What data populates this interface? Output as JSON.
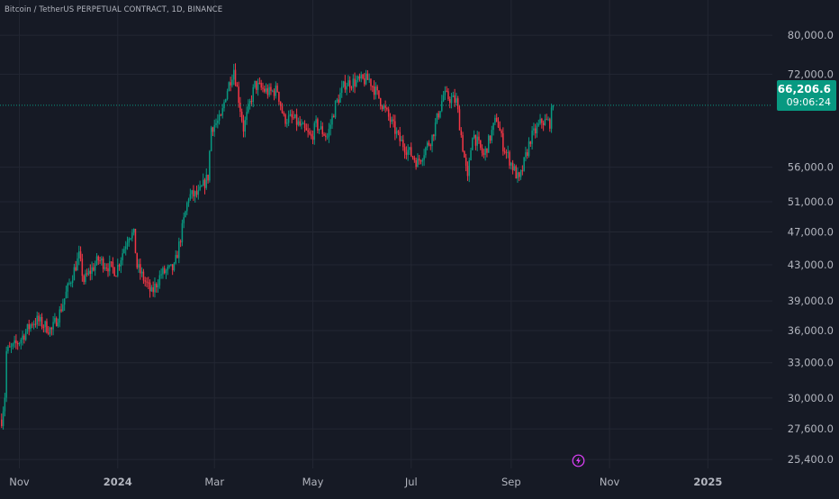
{
  "header": {
    "title": "Bitcoin / TetherUS PERPETUAL CONTRACT, 1D, BINANCE"
  },
  "last_price": {
    "value": "66,206.6",
    "countdown": "09:06:24",
    "color": "#089981"
  },
  "colors": {
    "background": "#161a25",
    "up": "#089981",
    "down": "#f23645",
    "grid": "#232733",
    "text": "#d1d4dc"
  },
  "icons": {
    "bottom": "lightning-icon"
  },
  "chart_data": {
    "type": "candlestick",
    "title": "Bitcoin / TetherUS PERPETUAL CONTRACT, 1D, BINANCE",
    "y_scale": "log",
    "ylim": [
      24800,
      88000
    ],
    "y_ticks": [
      "80,000.0",
      "72,000.0",
      "56,000.0",
      "51,000.0",
      "47,000.0",
      "43,000.0",
      "39,000.0",
      "36,000.0",
      "33,000.0",
      "30,000.0",
      "27,600.0",
      "25,400.0"
    ],
    "x_ticks": [
      "Nov",
      "2024",
      "Mar",
      "May",
      "Jul",
      "Sep",
      "Nov",
      "2025"
    ],
    "x_range": [
      "2023-10-20",
      "2025-02-10"
    ],
    "last_close": 66206.6,
    "grid": true,
    "closes": [
      [
        "2023-10-21",
        28300
      ],
      [
        "2023-10-23",
        30200
      ],
      [
        "2023-10-24",
        34000
      ],
      [
        "2023-10-28",
        34400
      ],
      [
        "2023-11-01",
        35000
      ],
      [
        "2023-11-09",
        36800
      ],
      [
        "2023-11-12",
        37000
      ],
      [
        "2023-11-21",
        36000
      ],
      [
        "2023-11-26",
        37800
      ],
      [
        "2023-12-04",
        41900
      ],
      [
        "2023-12-08",
        44000
      ],
      [
        "2023-12-11",
        41200
      ],
      [
        "2023-12-20",
        43600
      ],
      [
        "2023-12-31",
        42300
      ],
      [
        "2024-01-08",
        46800
      ],
      [
        "2024-01-11",
        46600
      ],
      [
        "2024-01-13",
        42800
      ],
      [
        "2024-01-22",
        39800
      ],
      [
        "2024-01-28",
        42000
      ],
      [
        "2024-02-05",
        42600
      ],
      [
        "2024-02-08",
        45300
      ],
      [
        "2024-02-14",
        51800
      ],
      [
        "2024-02-20",
        52000
      ],
      [
        "2024-02-26",
        54600
      ],
      [
        "2024-02-28",
        62400
      ],
      [
        "2024-03-05",
        63700
      ],
      [
        "2024-03-08",
        68200
      ],
      [
        "2024-03-13",
        73100
      ],
      [
        "2024-03-19",
        62200
      ],
      [
        "2024-03-26",
        69900
      ],
      [
        "2024-04-04",
        68500
      ],
      [
        "2024-04-09",
        69000
      ],
      [
        "2024-04-13",
        63800
      ],
      [
        "2024-04-19",
        63800
      ],
      [
        "2024-04-30",
        60600
      ],
      [
        "2024-05-03",
        62800
      ],
      [
        "2024-05-10",
        60800
      ],
      [
        "2024-05-15",
        66200
      ],
      [
        "2024-05-21",
        70200
      ],
      [
        "2024-06-05",
        71000
      ],
      [
        "2024-06-12",
        67000
      ],
      [
        "2024-06-24",
        60200
      ],
      [
        "2024-07-05",
        56700
      ],
      [
        "2024-07-14",
        60800
      ],
      [
        "2024-07-21",
        68000
      ],
      [
        "2024-07-29",
        66900
      ],
      [
        "2024-08-05",
        54000
      ],
      [
        "2024-08-08",
        61500
      ],
      [
        "2024-08-15",
        57700
      ],
      [
        "2024-08-23",
        64000
      ],
      [
        "2024-08-27",
        59400
      ],
      [
        "2024-09-06",
        53900
      ],
      [
        "2024-09-13",
        60500
      ],
      [
        "2024-09-20",
        63400
      ],
      [
        "2024-09-25",
        63200
      ],
      [
        "2024-09-27",
        66206.6
      ]
    ]
  }
}
